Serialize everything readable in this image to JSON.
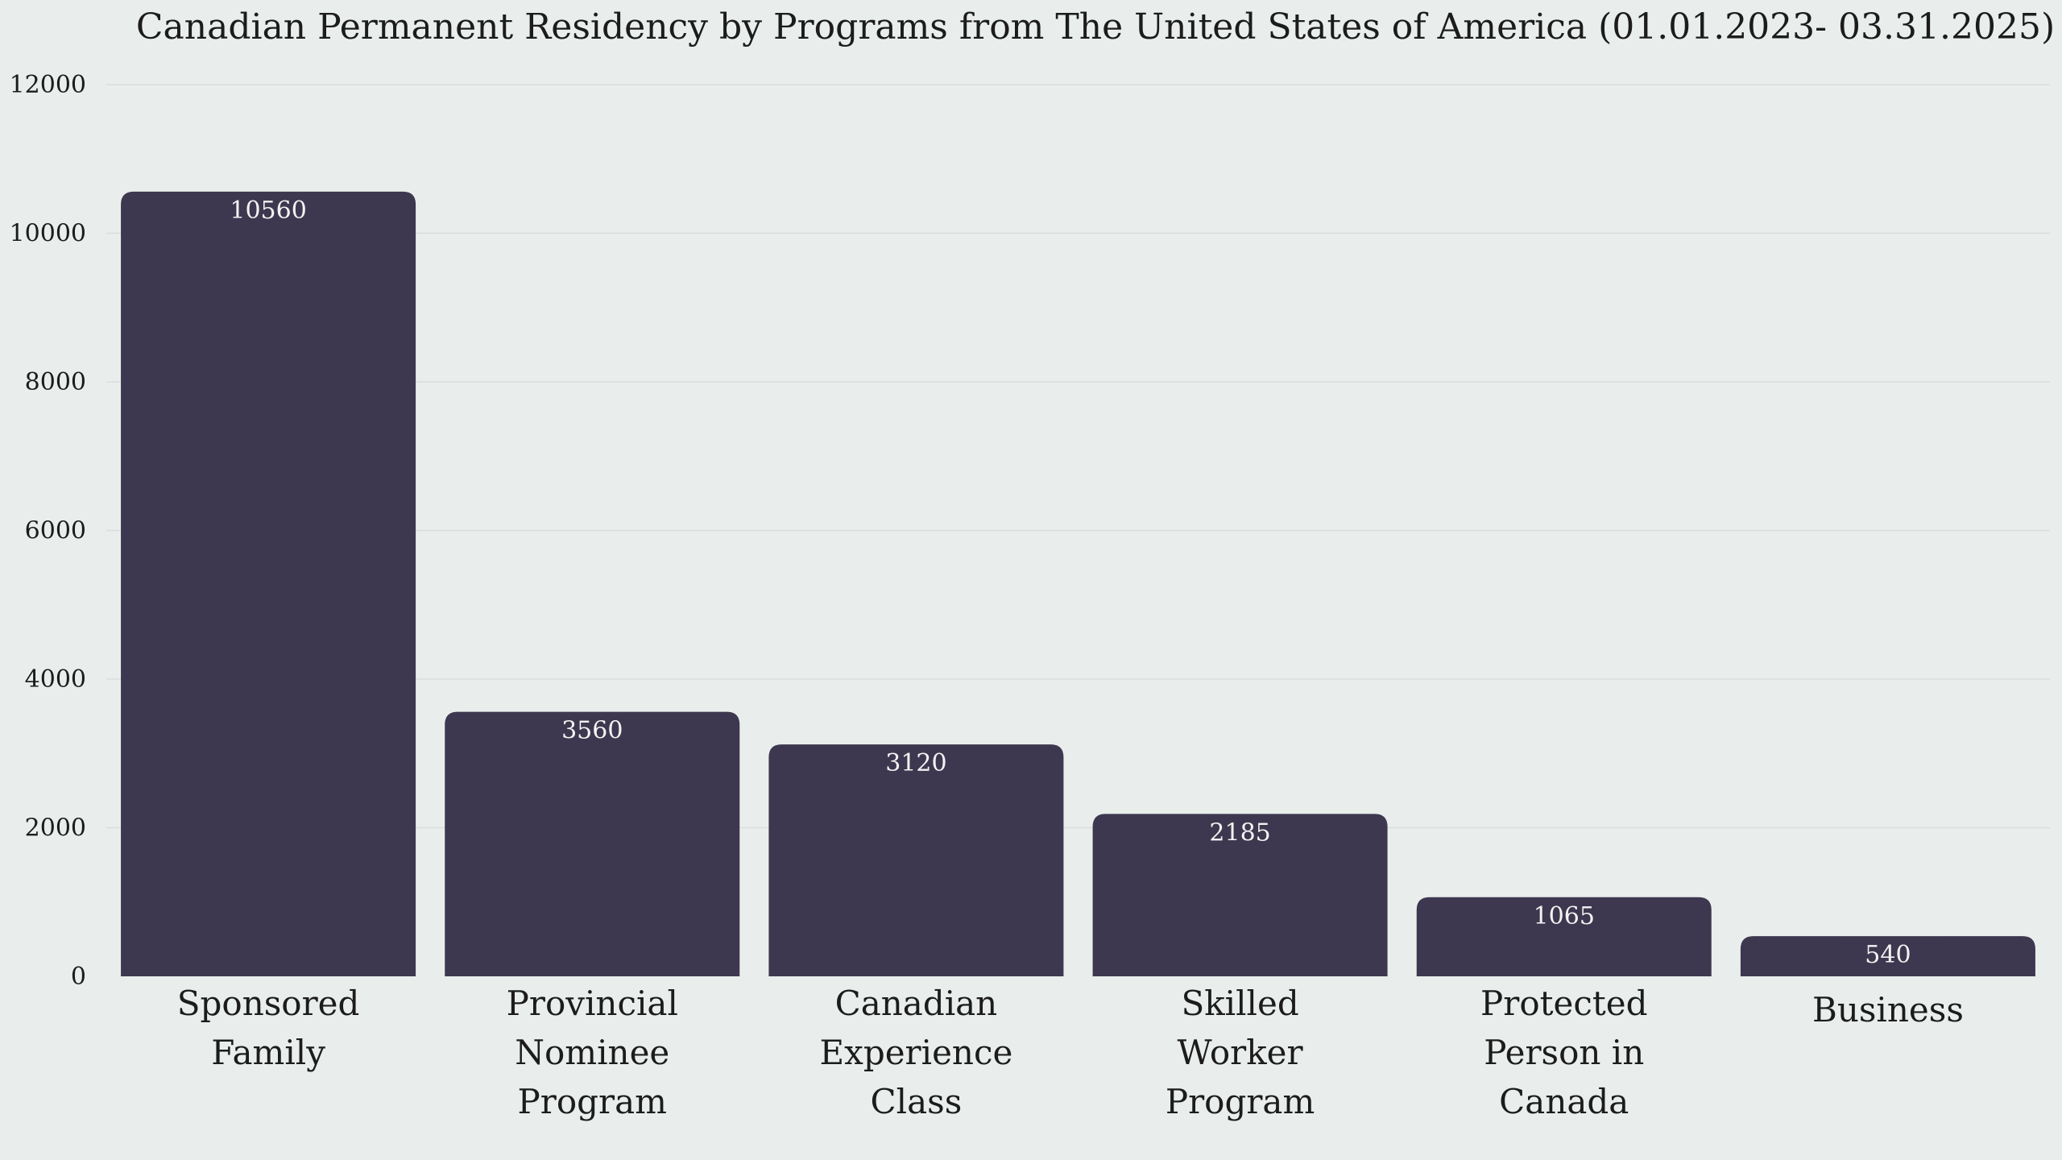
{
  "chart_data": {
    "type": "bar",
    "title": "Canadian Permanent Residency by Programs from The United States of America (01.01.2023- 03.31.2025)",
    "xlabel": "",
    "ylabel": "",
    "ylim": [
      0,
      12000
    ],
    "yticks": [
      0,
      2000,
      4000,
      6000,
      8000,
      10000,
      12000
    ],
    "grid": true,
    "categories": [
      [
        "Sponsored",
        "Family"
      ],
      [
        "Provincial",
        "Nominee",
        "Program"
      ],
      [
        "Canadian",
        "Experience",
        "Class"
      ],
      [
        "Skilled",
        "Worker",
        "Program"
      ],
      [
        "Protected",
        "Person in",
        "Canada"
      ],
      [
        "Business"
      ]
    ],
    "values": [
      10560,
      3560,
      3120,
      2185,
      1065,
      540
    ],
    "bar_color": "#3d384f",
    "label_color": "#f2f2f2",
    "background": "#e9eeec"
  }
}
